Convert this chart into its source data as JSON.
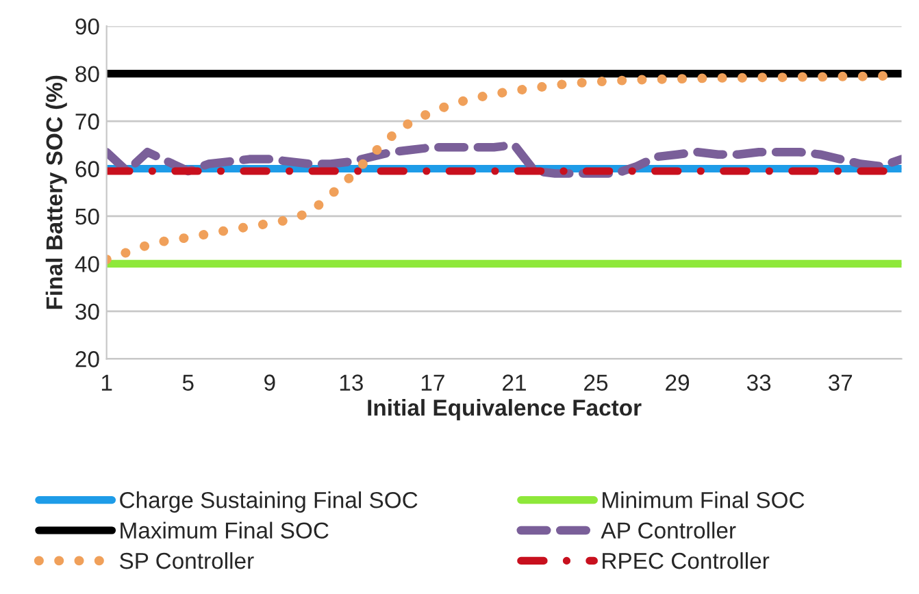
{
  "chart_data": {
    "type": "line",
    "xlabel": "Initial Equivalence Factor",
    "ylabel": "Final Battery SOC (%)",
    "categories": [
      "1",
      null,
      null,
      null,
      "5",
      null,
      null,
      null,
      "9",
      null,
      null,
      null,
      "13",
      null,
      null,
      null,
      "17",
      null,
      null,
      null,
      "21",
      null,
      null,
      null,
      "25",
      null,
      null,
      null,
      "29",
      null,
      null,
      null,
      "33",
      null,
      null,
      null,
      "37",
      null,
      null,
      null
    ],
    "series": [
      {
        "name": "Charge Sustaining Final SOC",
        "color": "#1e9ce8",
        "line_style": "solid",
        "values": [
          60,
          60,
          60,
          60,
          60,
          60,
          60,
          60,
          60,
          60,
          60,
          60,
          60,
          60,
          60,
          60,
          60,
          60,
          60,
          60,
          60,
          60,
          60,
          60,
          60,
          60,
          60,
          60,
          60,
          60,
          60,
          60,
          60,
          60,
          60,
          60,
          60,
          60,
          60,
          60
        ]
      },
      {
        "name": "Minimum Final SOC",
        "color": "#8ee83a",
        "line_style": "solid",
        "values": [
          40,
          40,
          40,
          40,
          40,
          40,
          40,
          40,
          40,
          40,
          40,
          40,
          40,
          40,
          40,
          40,
          40,
          40,
          40,
          40,
          40,
          40,
          40,
          40,
          40,
          40,
          40,
          40,
          40,
          40,
          40,
          40,
          40,
          40,
          40,
          40,
          40,
          40,
          40,
          40
        ]
      },
      {
        "name": "Maximum Final SOC",
        "color": "#000000",
        "line_style": "solid",
        "values": [
          80,
          80,
          80,
          80,
          80,
          80,
          80,
          80,
          80,
          80,
          80,
          80,
          80,
          80,
          80,
          80,
          80,
          80,
          80,
          80,
          80,
          80,
          80,
          80,
          80,
          80,
          80,
          80,
          80,
          80,
          80,
          80,
          80,
          80,
          80,
          80,
          80,
          80,
          80,
          80
        ]
      },
      {
        "name": "AP Controller",
        "color": "#7a5f99",
        "line_style": "dashed",
        "values": [
          63.5,
          59.5,
          63.5,
          61.5,
          59.5,
          61,
          61.5,
          62,
          62,
          61.5,
          61,
          61,
          61.5,
          62.5,
          63.5,
          64,
          64.5,
          64.5,
          64.5,
          64.5,
          65,
          59.5,
          59,
          59,
          59,
          59,
          60.5,
          62.5,
          63,
          63.5,
          63,
          63,
          63.5,
          63.5,
          63.5,
          63,
          62,
          61,
          60.5,
          62
        ]
      },
      {
        "name": "SP Controller",
        "color": "#f0a05a",
        "line_style": "dotted",
        "values": [
          40.9,
          42.4,
          43.9,
          44.9,
          45.5,
          46.3,
          47.1,
          47.8,
          48.5,
          49.3,
          50.9,
          54.5,
          58.4,
          62.9,
          66.9,
          70.1,
          72.0,
          73.7,
          74.8,
          75.7,
          76.4,
          77.0,
          77.6,
          78.0,
          78.3,
          78.5,
          78.7,
          78.8,
          78.9,
          79.0,
          79.1,
          79.1,
          79.2,
          79.2,
          79.3,
          79.3,
          79.4,
          79.4,
          79.5,
          79.6
        ]
      },
      {
        "name": "RPEC Controller",
        "color": "#c8101e",
        "line_style": "dashdot",
        "values": [
          59.5,
          59.5,
          59.5,
          59.5,
          59.5,
          59.5,
          59.5,
          59.5,
          59.5,
          59.5,
          59.5,
          59.5,
          59.5,
          59.5,
          59.5,
          59.5,
          59.5,
          59.5,
          59.5,
          59.5,
          59.5,
          59.5,
          59.5,
          59.5,
          59.5,
          59.5,
          59.5,
          59.5,
          59.5,
          59.5,
          59.5,
          59.5,
          59.5,
          59.5,
          59.5,
          59.5,
          59.5,
          59.5,
          59.5,
          59.5
        ]
      }
    ],
    "ylim": [
      20,
      90
    ],
    "yticks": [
      20,
      30,
      40,
      50,
      60,
      70,
      80,
      90
    ],
    "grid": "y",
    "legend": "bottom"
  }
}
